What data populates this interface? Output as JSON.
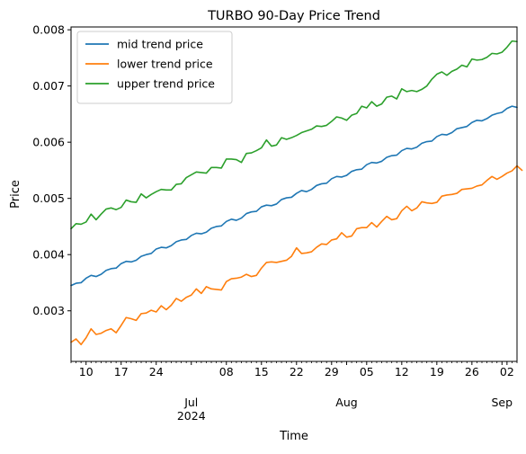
{
  "chart_data": {
    "type": "line",
    "title": "TURBO 90-Day Price Trend",
    "xlabel": "Time",
    "ylabel": "Price",
    "x_start": "2024-06-07",
    "x_end": "2024-09-04",
    "xlim": [
      "2024-06-07",
      "2024-09-04"
    ],
    "ylim": [
      0.0021,
      0.00805
    ],
    "grid": false,
    "legend_position": "top-left",
    "y_ticks": [
      "0.003",
      "0.004",
      "0.005",
      "0.006",
      "0.007",
      "0.008"
    ],
    "x_major_ticks": [
      {
        "date": "2024-06-10",
        "label": "10"
      },
      {
        "date": "2024-06-17",
        "label": "17"
      },
      {
        "date": "2024-06-24",
        "label": "24"
      },
      {
        "date": "2024-07-01",
        "label": "Jul\n2024"
      },
      {
        "date": "2024-07-08",
        "label": "08"
      },
      {
        "date": "2024-07-15",
        "label": "15"
      },
      {
        "date": "2024-07-22",
        "label": "22"
      },
      {
        "date": "2024-07-29",
        "label": "29"
      },
      {
        "date": "2024-08-01",
        "label": "Aug"
      },
      {
        "date": "2024-08-05",
        "label": "05"
      },
      {
        "date": "2024-08-12",
        "label": "12"
      },
      {
        "date": "2024-08-19",
        "label": "19"
      },
      {
        "date": "2024-08-26",
        "label": "26"
      },
      {
        "date": "2024-09-01",
        "label": "Sep"
      },
      {
        "date": "2024-09-02",
        "label": "02"
      }
    ],
    "series": [
      {
        "name": "mid trend price",
        "color": "#1f77b4",
        "values": [
          0.00345,
          0.00349,
          0.0035,
          0.00358,
          0.00363,
          0.00361,
          0.00365,
          0.00372,
          0.00375,
          0.00376,
          0.00384,
          0.00388,
          0.00387,
          0.0039,
          0.00397,
          0.004,
          0.00402,
          0.0041,
          0.00413,
          0.00412,
          0.00416,
          0.00423,
          0.00426,
          0.00427,
          0.00434,
          0.00438,
          0.00437,
          0.0044,
          0.00447,
          0.0045,
          0.00451,
          0.00459,
          0.00463,
          0.00461,
          0.00465,
          0.00473,
          0.00476,
          0.00477,
          0.00485,
          0.00488,
          0.00487,
          0.0049,
          0.00498,
          0.00501,
          0.00502,
          0.00509,
          0.00514,
          0.00512,
          0.00516,
          0.00523,
          0.00526,
          0.00527,
          0.00535,
          0.00539,
          0.00538,
          0.00541,
          0.00548,
          0.00551,
          0.00552,
          0.0056,
          0.00564,
          0.00563,
          0.00566,
          0.00573,
          0.00576,
          0.00577,
          0.00585,
          0.00589,
          0.00588,
          0.00591,
          0.00598,
          0.00601,
          0.00602,
          0.0061,
          0.00614,
          0.00613,
          0.00617,
          0.00624,
          0.00626,
          0.00628,
          0.00635,
          0.00639,
          0.00638,
          0.00642,
          0.00648,
          0.00651,
          0.00653,
          0.0066,
          0.00664,
          0.00662
        ]
      },
      {
        "name": "lower trend price",
        "color": "#ff7f0e",
        "values": [
          0.00244,
          0.0025,
          0.0024,
          0.00252,
          0.00268,
          0.00258,
          0.0026,
          0.00265,
          0.00268,
          0.00261,
          0.00274,
          0.00288,
          0.00286,
          0.00283,
          0.00295,
          0.00296,
          0.00301,
          0.00298,
          0.00309,
          0.00302,
          0.0031,
          0.00322,
          0.00317,
          0.00324,
          0.00328,
          0.00339,
          0.00331,
          0.00343,
          0.00339,
          0.00338,
          0.00337,
          0.00352,
          0.00357,
          0.00358,
          0.0036,
          0.00365,
          0.00361,
          0.00363,
          0.00376,
          0.00386,
          0.00387,
          0.00386,
          0.00388,
          0.0039,
          0.00397,
          0.00412,
          0.00402,
          0.00403,
          0.00405,
          0.00413,
          0.00419,
          0.00418,
          0.00426,
          0.00428,
          0.00439,
          0.00431,
          0.00433,
          0.00446,
          0.00448,
          0.00448,
          0.00457,
          0.00449,
          0.00459,
          0.00468,
          0.00462,
          0.00464,
          0.00478,
          0.00486,
          0.00478,
          0.00483,
          0.00494,
          0.00492,
          0.00491,
          0.00493,
          0.00504,
          0.00506,
          0.00507,
          0.00509,
          0.00516,
          0.00517,
          0.00518,
          0.00522,
          0.00524,
          0.00532,
          0.00539,
          0.00534,
          0.00539,
          0.00545,
          0.00549,
          0.00558,
          0.0055
        ]
      },
      {
        "name": "upper trend price",
        "color": "#2ca02c",
        "values": [
          0.00446,
          0.00455,
          0.00454,
          0.00458,
          0.00472,
          0.00462,
          0.00472,
          0.00481,
          0.00483,
          0.0048,
          0.00484,
          0.00497,
          0.00494,
          0.00493,
          0.00508,
          0.00501,
          0.00507,
          0.00512,
          0.00516,
          0.00515,
          0.00515,
          0.00525,
          0.00526,
          0.00537,
          0.00542,
          0.00547,
          0.00546,
          0.00545,
          0.00555,
          0.00555,
          0.00554,
          0.0057,
          0.0057,
          0.00569,
          0.00564,
          0.0058,
          0.00581,
          0.00585,
          0.0059,
          0.00604,
          0.00593,
          0.00595,
          0.00608,
          0.00605,
          0.00608,
          0.00612,
          0.00617,
          0.0062,
          0.00623,
          0.00629,
          0.00628,
          0.0063,
          0.00637,
          0.00645,
          0.00643,
          0.00639,
          0.00648,
          0.00651,
          0.00664,
          0.00661,
          0.00672,
          0.00664,
          0.00668,
          0.0068,
          0.00682,
          0.00677,
          0.00695,
          0.0069,
          0.00692,
          0.0069,
          0.00694,
          0.007,
          0.00712,
          0.00721,
          0.00725,
          0.00719,
          0.00726,
          0.0073,
          0.00737,
          0.00734,
          0.00748,
          0.00746,
          0.00747,
          0.00751,
          0.00758,
          0.00757,
          0.0076,
          0.00769,
          0.0078,
          0.00779
        ]
      }
    ]
  }
}
